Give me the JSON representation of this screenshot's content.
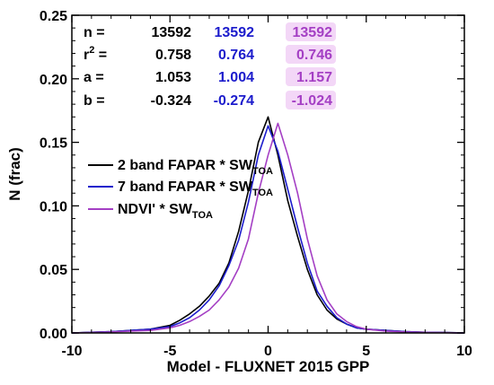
{
  "chart_data": {
    "type": "line",
    "xlabel": "Model - FLUXNET 2015 GPP",
    "ylabel": "N (frac)",
    "xlim": [
      -10,
      10
    ],
    "ylim": [
      0,
      0.25
    ],
    "x_ticks": [
      -10,
      -5,
      0,
      5,
      10
    ],
    "y_ticks": [
      0.0,
      0.05,
      0.1,
      0.15,
      0.2,
      0.25
    ],
    "x_tick_labels": [
      "-10",
      "-5",
      "0",
      "5",
      "10"
    ],
    "y_tick_labels": [
      "0.00",
      "0.05",
      "0.10",
      "0.15",
      "0.20",
      "0.25"
    ],
    "legend_position": "middle-left",
    "stats": {
      "row_labels": [
        "n =",
        "r",
        "a =",
        "b ="
      ],
      "r_suffix": "2",
      "r_equals": " =",
      "columns": [
        {
          "color": "#000000",
          "values": [
            "13592",
            "0.758",
            "1.053",
            "-0.324"
          ]
        },
        {
          "color": "#1c1ccc",
          "values": [
            "13592",
            "0.764",
            "1.004",
            "-0.274"
          ]
        },
        {
          "color": "#a43fc4",
          "values": [
            "13592",
            "0.746",
            "1.157",
            "-1.024"
          ]
        }
      ]
    },
    "series": [
      {
        "name": "2 band FAPAR * SW",
        "name_subscript": "TOA",
        "color": "#000000",
        "x": [
          -10,
          -9,
          -8,
          -7,
          -6,
          -5,
          -4.5,
          -4,
          -3.5,
          -3,
          -2.5,
          -2,
          -1.5,
          -1,
          -0.5,
          0,
          0.5,
          1,
          1.5,
          2,
          2.5,
          3,
          3.5,
          4,
          4.5,
          5,
          6,
          7,
          8,
          9,
          10
        ],
        "y": [
          0,
          0.0005,
          0.001,
          0.002,
          0.003,
          0.006,
          0.01,
          0.015,
          0.021,
          0.029,
          0.039,
          0.055,
          0.08,
          0.112,
          0.15,
          0.17,
          0.14,
          0.104,
          0.076,
          0.05,
          0.03,
          0.018,
          0.011,
          0.007,
          0.004,
          0.003,
          0.002,
          0.001,
          0.0005,
          0.0003,
          0
        ]
      },
      {
        "name": "7 band FAPAR * SW",
        "name_subscript": "TOA",
        "color": "#1c1ccc",
        "x": [
          -10,
          -9,
          -8,
          -7,
          -6,
          -5,
          -4.5,
          -4,
          -3.5,
          -3,
          -2.5,
          -2,
          -1.5,
          -1,
          -0.5,
          0,
          0.5,
          1,
          1.5,
          2,
          2.5,
          3,
          3.5,
          4,
          4.5,
          5,
          6,
          7,
          8,
          9,
          10
        ],
        "y": [
          0,
          0.0005,
          0.001,
          0.002,
          0.003,
          0.005,
          0.008,
          0.012,
          0.018,
          0.026,
          0.037,
          0.053,
          0.073,
          0.103,
          0.14,
          0.163,
          0.143,
          0.113,
          0.083,
          0.055,
          0.033,
          0.021,
          0.012,
          0.007,
          0.004,
          0.003,
          0.002,
          0.001,
          0.0005,
          0.0003,
          0
        ]
      },
      {
        "name": "NDVI' * SW",
        "name_subscript": "TOA",
        "color": "#a43fc4",
        "x": [
          -10,
          -9,
          -8,
          -7,
          -6,
          -5,
          -4.5,
          -4,
          -3.5,
          -3,
          -2.5,
          -2,
          -1.5,
          -1,
          -0.5,
          0,
          0.5,
          1,
          1.5,
          2,
          2.5,
          3,
          3.5,
          4,
          4.5,
          5,
          6,
          7,
          8,
          9,
          10
        ],
        "y": [
          0,
          0.0003,
          0.0008,
          0.0015,
          0.002,
          0.004,
          0.006,
          0.009,
          0.013,
          0.018,
          0.026,
          0.036,
          0.051,
          0.074,
          0.11,
          0.14,
          0.165,
          0.14,
          0.11,
          0.074,
          0.045,
          0.026,
          0.015,
          0.009,
          0.005,
          0.003,
          0.0015,
          0.0008,
          0.0004,
          0.0002,
          0
        ]
      }
    ]
  }
}
